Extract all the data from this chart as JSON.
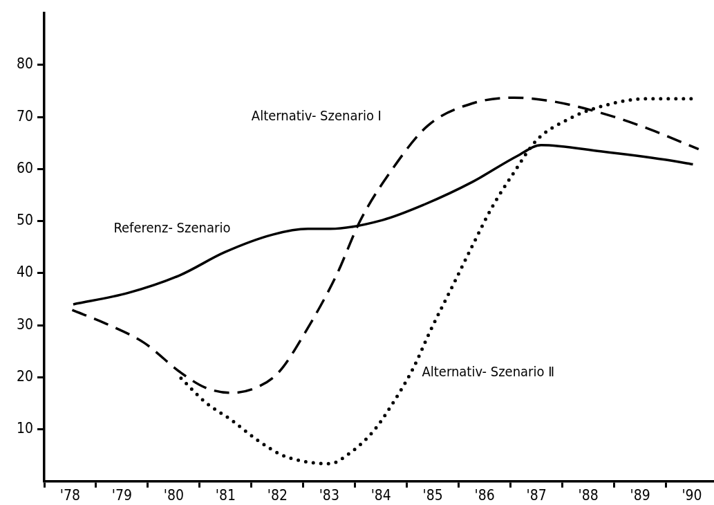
{
  "chart_data": {
    "type": "line",
    "xlim": [
      1977.5,
      1990.4
    ],
    "ylim": [
      0,
      90
    ],
    "yticks": [
      10,
      20,
      30,
      40,
      50,
      60,
      70,
      80
    ],
    "xticks": [
      {
        "value": 1977.5,
        "label": null
      },
      {
        "value": 1978,
        "label": "'78"
      },
      {
        "value": 1978.5,
        "label": null
      },
      {
        "value": 1979,
        "label": "'79"
      },
      {
        "value": 1979.5,
        "label": null
      },
      {
        "value": 1980,
        "label": "'80"
      },
      {
        "value": 1980.5,
        "label": null
      },
      {
        "value": 1981,
        "label": "'81"
      },
      {
        "value": 1981.5,
        "label": null
      },
      {
        "value": 1982,
        "label": "'82"
      },
      {
        "value": 1982.5,
        "label": null
      },
      {
        "value": 1983,
        "label": "'83"
      },
      {
        "value": 1983.5,
        "label": null
      },
      {
        "value": 1984,
        "label": "'84"
      },
      {
        "value": 1984.5,
        "label": null
      },
      {
        "value": 1985,
        "label": "'85"
      },
      {
        "value": 1985.5,
        "label": null
      },
      {
        "value": 1986,
        "label": "'86"
      },
      {
        "value": 1986.5,
        "label": null
      },
      {
        "value": 1987,
        "label": "'87"
      },
      {
        "value": 1987.5,
        "label": null
      },
      {
        "value": 1988,
        "label": "'88"
      },
      {
        "value": 1988.5,
        "label": null
      },
      {
        "value": 1989,
        "label": "'89"
      },
      {
        "value": 1989.5,
        "label": null
      },
      {
        "value": 1990,
        "label": "'90"
      }
    ],
    "marker": "none",
    "series": [
      {
        "name": "Referenz- Szenario",
        "color": "#000000",
        "line_style": "solid",
        "x": [
          1978.06,
          1979.12,
          1980.12,
          1980.98,
          1981.91,
          1982.59,
          1983.02,
          1984.03,
          1984.84,
          1985.76,
          1986.63,
          1987.09,
          1988.24,
          1989.48,
          1990.02
        ],
        "values": [
          34.0,
          36.2,
          39.6,
          44.0,
          47.4,
          48.5,
          48.5,
          50.2,
          53.2,
          57.5,
          62.5,
          64.6,
          63.4,
          61.8,
          60.9
        ]
      },
      {
        "name": "Alternativ- Szenario I",
        "color": "#000000",
        "line_style": "dashed",
        "x": [
          1978.04,
          1978.69,
          1979.43,
          1980.12,
          1980.61,
          1981.11,
          1981.59,
          1982.03,
          1982.53,
          1983.14,
          1983.6,
          1984.22,
          1984.9,
          1985.76,
          1986.57,
          1987.31,
          1988.24,
          1989.17,
          1990.13
        ],
        "values": [
          32.9,
          30.3,
          26.6,
          21.0,
          18.0,
          17.0,
          18.0,
          21.0,
          28.5,
          39.6,
          50.1,
          60.0,
          68.3,
          72.6,
          73.7,
          73.0,
          70.8,
          67.7,
          63.8
        ]
      },
      {
        "name": "Alternativ- Szenario Ⅱ",
        "color": "#000000",
        "line_style": "dotted",
        "x": [
          1980.14,
          1980.61,
          1981.11,
          1981.59,
          1982.1,
          1982.59,
          1983.02,
          1983.38,
          1983.85,
          1984.22,
          1984.62,
          1984.96,
          1985.39,
          1985.76,
          1986.14,
          1986.57,
          1987.0,
          1987.62,
          1988.24,
          1989.11,
          1990.04
        ],
        "values": [
          19.8,
          15.2,
          11.8,
          8.1,
          5.0,
          3.7,
          3.4,
          5.3,
          9.6,
          14.9,
          21.7,
          29.1,
          37.7,
          45.2,
          52.6,
          59.4,
          65.5,
          69.6,
          72.0,
          73.5,
          73.5
        ]
      }
    ]
  }
}
